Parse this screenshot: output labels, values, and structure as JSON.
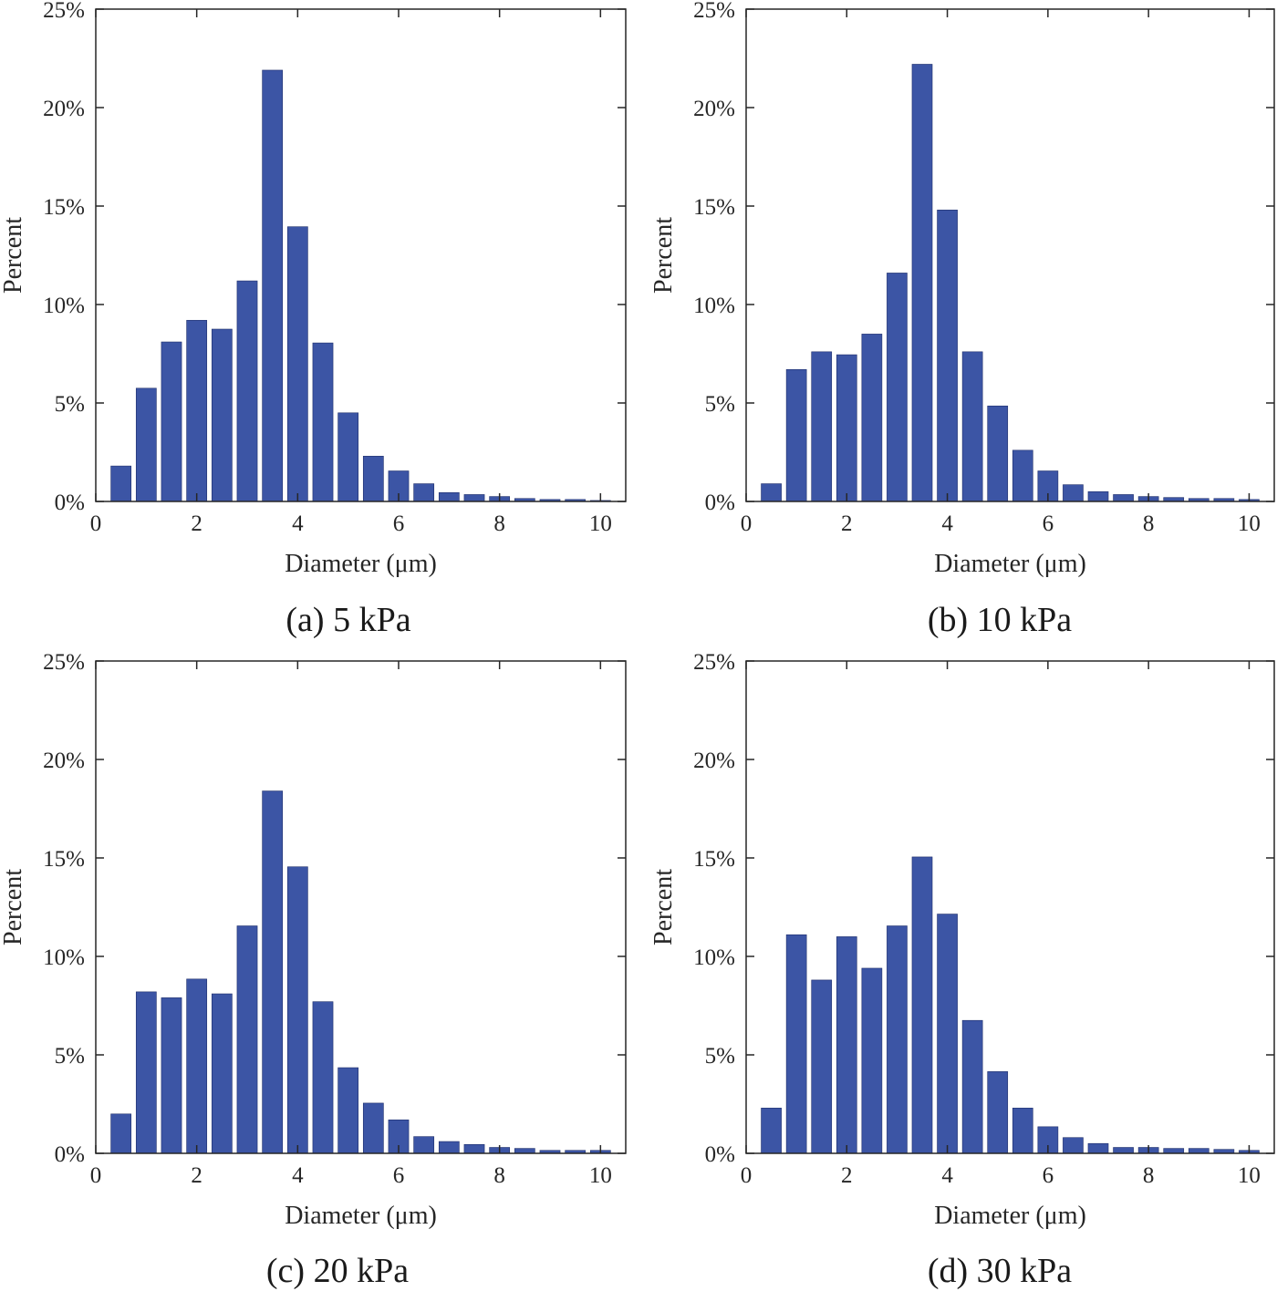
{
  "colors": {
    "bar": "#3c55a5",
    "axis": "#262626",
    "background": "#ffffff"
  },
  "chart_data": [
    {
      "type": "bar",
      "caption": "(a) 5 kPa",
      "xlabel": "Diameter (μm)",
      "ylabel": "Percent",
      "xlim": [
        0,
        10.5
      ],
      "ylim": [
        0,
        25
      ],
      "xticks": [
        0,
        2,
        4,
        6,
        8,
        10
      ],
      "yticks": [
        0,
        5,
        10,
        15,
        20,
        25
      ],
      "ytick_labels": [
        "0%",
        "5%",
        "10%",
        "15%",
        "20%",
        "25%"
      ],
      "bin_centers": [
        0.5,
        1.0,
        1.5,
        2.0,
        2.5,
        3.0,
        3.5,
        4.0,
        4.5,
        5.0,
        5.5,
        6.0,
        6.5,
        7.0,
        7.5,
        8.0,
        8.5,
        9.0,
        9.5,
        10.0
      ],
      "values": [
        1.8,
        5.75,
        8.1,
        9.2,
        8.75,
        11.2,
        21.9,
        13.95,
        8.05,
        4.5,
        2.3,
        1.55,
        0.9,
        0.45,
        0.35,
        0.25,
        0.15,
        0.1,
        0.1,
        0.05
      ]
    },
    {
      "type": "bar",
      "caption": "(b) 10 kPa",
      "xlabel": "Diameter (μm)",
      "ylabel": "Percent",
      "xlim": [
        0,
        10.5
      ],
      "ylim": [
        0,
        25
      ],
      "xticks": [
        0,
        2,
        4,
        6,
        8,
        10
      ],
      "yticks": [
        0,
        5,
        10,
        15,
        20,
        25
      ],
      "ytick_labels": [
        "0%",
        "5%",
        "10%",
        "15%",
        "20%",
        "25%"
      ],
      "bin_centers": [
        0.5,
        1.0,
        1.5,
        2.0,
        2.5,
        3.0,
        3.5,
        4.0,
        4.5,
        5.0,
        5.5,
        6.0,
        6.5,
        7.0,
        7.5,
        8.0,
        8.5,
        9.0,
        9.5,
        10.0
      ],
      "values": [
        0.9,
        6.7,
        7.6,
        7.45,
        8.5,
        11.6,
        22.2,
        14.8,
        7.6,
        4.85,
        2.6,
        1.55,
        0.85,
        0.5,
        0.35,
        0.25,
        0.2,
        0.15,
        0.15,
        0.1
      ]
    },
    {
      "type": "bar",
      "caption": "(c) 20 kPa",
      "xlabel": "Diameter (μm)",
      "ylabel": "Percent",
      "xlim": [
        0,
        10.5
      ],
      "ylim": [
        0,
        25
      ],
      "xticks": [
        0,
        2,
        4,
        6,
        8,
        10
      ],
      "yticks": [
        0,
        5,
        10,
        15,
        20,
        25
      ],
      "ytick_labels": [
        "0%",
        "5%",
        "10%",
        "15%",
        "20%",
        "25%"
      ],
      "bin_centers": [
        0.5,
        1.0,
        1.5,
        2.0,
        2.5,
        3.0,
        3.5,
        4.0,
        4.5,
        5.0,
        5.5,
        6.0,
        6.5,
        7.0,
        7.5,
        8.0,
        8.5,
        9.0,
        9.5,
        10.0
      ],
      "values": [
        2.0,
        8.2,
        7.9,
        8.85,
        8.1,
        11.55,
        18.4,
        14.55,
        7.7,
        4.35,
        2.55,
        1.7,
        0.85,
        0.6,
        0.45,
        0.3,
        0.25,
        0.15,
        0.15,
        0.15
      ]
    },
    {
      "type": "bar",
      "caption": "(d) 30 kPa",
      "xlabel": "Diameter (μm)",
      "ylabel": "Percent",
      "xlim": [
        0,
        10.5
      ],
      "ylim": [
        0,
        25
      ],
      "xticks": [
        0,
        2,
        4,
        6,
        8,
        10
      ],
      "yticks": [
        0,
        5,
        10,
        15,
        20,
        25
      ],
      "ytick_labels": [
        "0%",
        "5%",
        "10%",
        "15%",
        "20%",
        "25%"
      ],
      "bin_centers": [
        0.5,
        1.0,
        1.5,
        2.0,
        2.5,
        3.0,
        3.5,
        4.0,
        4.5,
        5.0,
        5.5,
        6.0,
        6.5,
        7.0,
        7.5,
        8.0,
        8.5,
        9.0,
        9.5,
        10.0
      ],
      "values": [
        2.3,
        11.1,
        8.8,
        11.0,
        9.4,
        11.55,
        15.05,
        12.15,
        6.75,
        4.15,
        2.3,
        1.35,
        0.8,
        0.5,
        0.3,
        0.3,
        0.25,
        0.25,
        0.2,
        0.15
      ]
    }
  ]
}
